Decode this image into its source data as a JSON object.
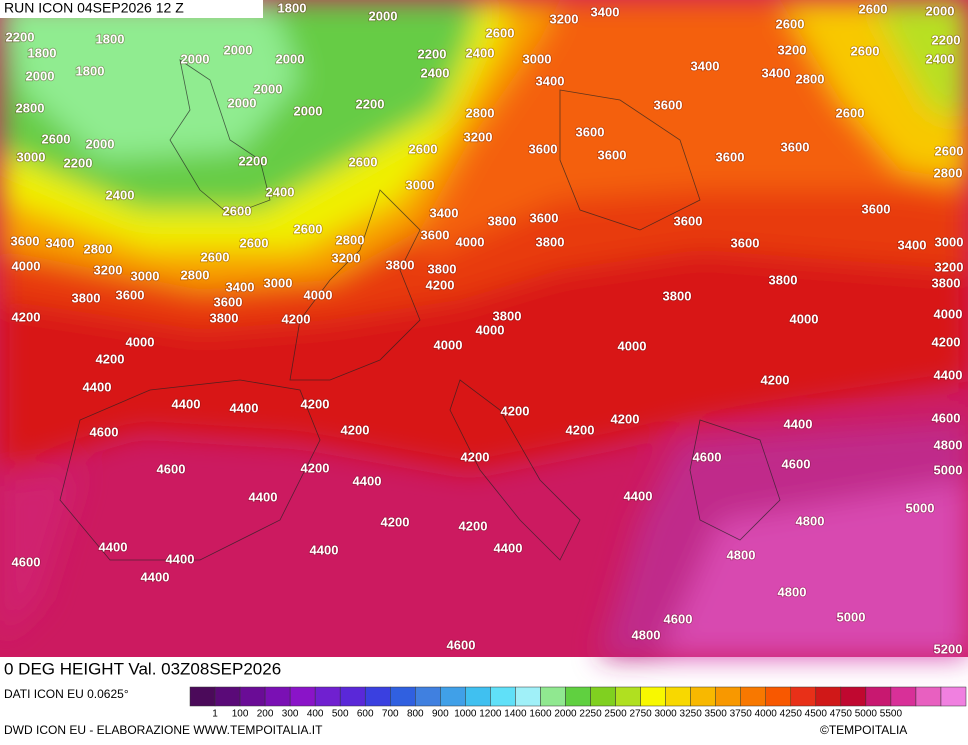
{
  "header": {
    "run": "RUN ICON 04SEP2026 12 Z"
  },
  "field_title": "0 DEG HEIGHT Val. 03Z08SEP2026",
  "data_source": "DATI ICON EU 0.0625°",
  "credit": "DWD ICON EU - ELABORAZIONE WWW.TEMPOITALIA.IT",
  "logo": "©TEMPOITALIA",
  "colorbar": {
    "colors": [
      "#4b0a5a",
      "#5a0a78",
      "#6a0c96",
      "#7a10b4",
      "#8a14c8",
      "#7020d0",
      "#5a28d8",
      "#3a40e0",
      "#3060e0",
      "#4080e0",
      "#40a0e8",
      "#40c0f0",
      "#60e0f8",
      "#a0f0f8",
      "#90e890",
      "#60d040",
      "#80d020",
      "#b0e020",
      "#f8f800",
      "#f8d800",
      "#f8b800",
      "#f89800",
      "#f87800",
      "#f85800",
      "#e83018",
      "#d01818",
      "#c00830",
      "#c81870",
      "#d83098",
      "#e860c0",
      "#f080e0"
    ],
    "labels": [
      "1",
      "100",
      "200",
      "300",
      "400",
      "500",
      "600",
      "700",
      "800",
      "900",
      "1000",
      "1200",
      "1400",
      "1600",
      "2000",
      "2250",
      "2500",
      "2750",
      "3000",
      "3250",
      "3500",
      "3750",
      "4000",
      "4250",
      "4500",
      "4750",
      "5000",
      "5500"
    ]
  },
  "contour_labels": [
    "2200",
    "1800",
    "2000",
    "1800",
    "1800",
    "2000",
    "2000",
    "2000",
    "2000",
    "2000",
    "2000",
    "2000",
    "1800",
    "2000",
    "2200",
    "2400",
    "2200",
    "2200",
    "2800",
    "2600",
    "3000",
    "2200",
    "2400",
    "2400",
    "2600",
    "2600",
    "2600",
    "2400",
    "2600",
    "3000",
    "3200",
    "3400",
    "3400",
    "2800",
    "3200",
    "3000",
    "3400",
    "3800",
    "3600",
    "3600",
    "4000",
    "3800",
    "2600",
    "2800",
    "3200",
    "2600",
    "2600",
    "3600",
    "3400",
    "2800",
    "4000",
    "3200",
    "3000",
    "2800",
    "3800",
    "3600",
    "3400",
    "3000",
    "4000",
    "3600",
    "3800",
    "3800",
    "3800",
    "4200",
    "4200",
    "4200",
    "3800",
    "4000",
    "4000",
    "4000",
    "4200",
    "4400",
    "4400",
    "4400",
    "4200",
    "4200",
    "4600",
    "4200",
    "4200",
    "4200",
    "4200",
    "4200",
    "4600",
    "4400",
    "4200",
    "4200",
    "4400",
    "4400",
    "4400",
    "4400",
    "4400",
    "4600",
    "4400",
    "4400",
    "4600",
    "4800",
    "4600",
    "4800",
    "4800",
    "5000",
    "4800",
    "5000",
    "5200",
    "4600",
    "4600",
    "4400",
    "4200",
    "4000",
    "3800",
    "3800",
    "4000",
    "3600",
    "3600",
    "3600",
    "3600",
    "3600",
    "3400",
    "3400",
    "2800",
    "3200",
    "2600",
    "2600",
    "2600",
    "3600",
    "3600",
    "3600",
    "3600",
    "3400",
    "3000",
    "3200",
    "3800",
    "4000",
    "4200",
    "4400",
    "4600",
    "4800",
    "5000",
    "2600",
    "2000",
    "2200",
    "2400",
    "2600",
    "2800"
  ]
}
